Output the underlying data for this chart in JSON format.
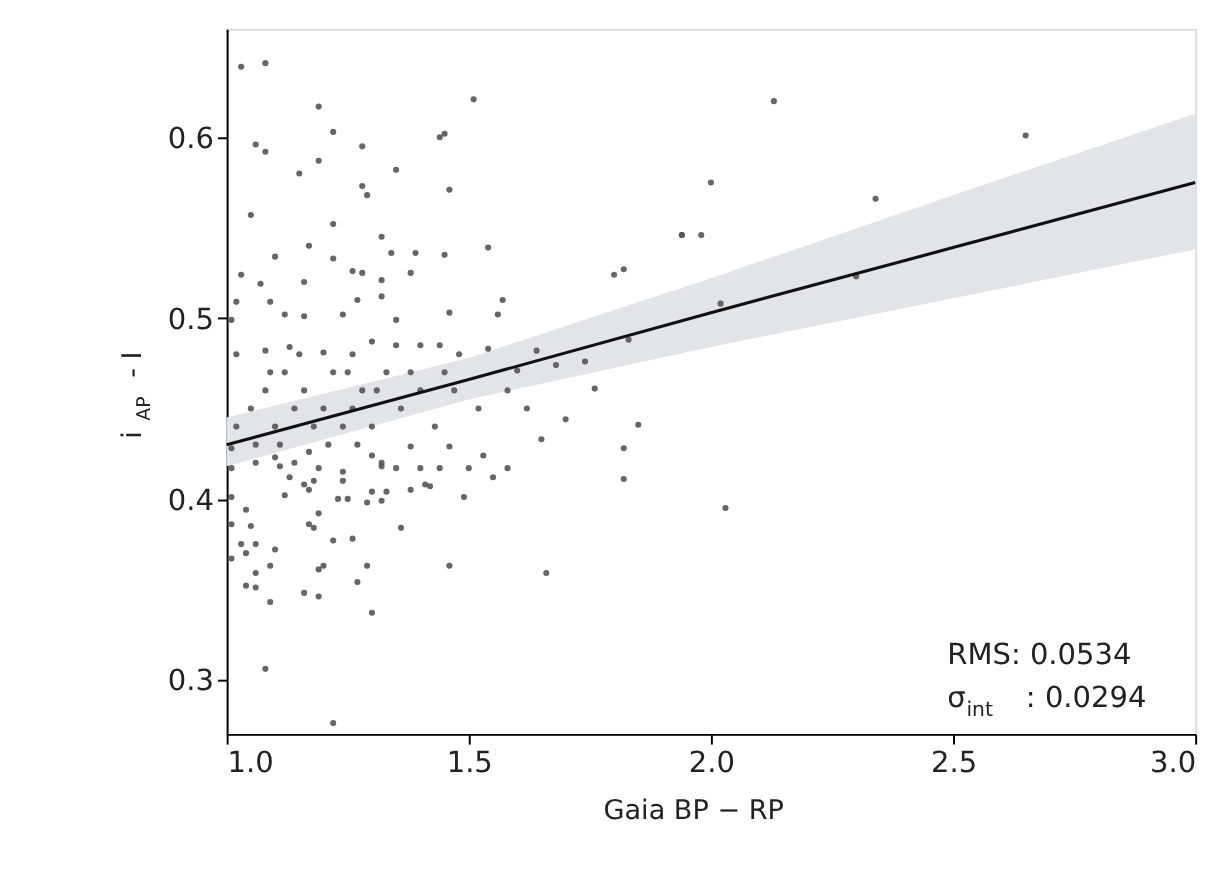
{
  "chart_data": {
    "type": "scatter",
    "xlabel": "Gaia BP − RP",
    "ylabel": "i$_{AP}$ - I",
    "xlim": [
      1.0,
      3.0
    ],
    "xticks": [
      {
        "value": 1,
        "label": "1.0"
      },
      1.5,
      {
        "value": 2,
        "label": "2.0"
      },
      2.5,
      {
        "value": 3,
        "label": "3.0"
      }
    ],
    "ylim": [
      0.27,
      0.66
    ],
    "yticks": [
      0.3,
      0.4,
      0.5,
      0.6
    ],
    "grid": false,
    "legend": false,
    "annotations": [
      "RMS: 0.0534",
      "σ$_{int}$ : 0.0294"
    ],
    "series": [
      {
        "marker": "circle",
        "color": "#555555",
        "x": [
          1.03,
          1.08,
          1.19,
          1.51,
          1.06,
          1.08,
          1.22,
          1.28,
          1.44,
          1.45,
          1.15,
          1.19,
          1.35,
          1.46,
          1.28,
          1.29,
          1.05,
          1.22,
          1.32,
          1.54,
          1.17,
          1.1,
          1.22,
          1.34,
          1.39,
          1.45,
          1.94,
          1.8,
          1.82,
          1.03,
          1.07,
          1.16,
          1.28,
          1.38,
          1.32,
          1.26,
          1.02,
          1.01,
          1.09,
          1.12,
          1.16,
          1.24,
          1.27,
          1.32,
          1.35,
          1.46,
          1.57,
          1.56,
          1.02,
          1.08,
          1.13,
          1.2,
          1.26,
          1.3,
          1.35,
          1.4,
          1.44,
          1.48,
          1.54,
          1.64,
          1.76,
          1.74,
          1.68,
          1.6,
          1.01,
          1.06,
          1.1,
          1.01,
          1.01,
          1.04,
          1.01,
          1.05,
          1.06,
          1.1,
          1.03,
          1.01,
          1.04,
          1.06,
          1.04,
          1.06,
          1.09,
          1.16,
          1.19,
          1.08,
          1.22,
          1.3,
          1.27,
          1.19,
          1.2,
          1.29,
          1.09,
          1.46,
          1.66,
          1.17,
          1.18,
          1.22,
          1.26,
          1.36,
          1.19,
          1.23,
          1.25,
          1.29,
          1.32,
          1.49,
          1.38,
          1.41,
          1.42,
          1.33,
          1.3,
          1.16,
          1.13,
          1.18,
          1.24,
          1.12,
          1.17,
          1.32,
          1.32,
          1.35,
          1.4,
          1.44,
          1.5,
          1.58,
          1.55,
          1.82,
          1.82,
          1.85,
          1.65,
          1.7,
          1.53,
          1.46,
          1.38,
          1.3,
          1.17,
          1.14,
          1.19,
          1.24,
          1.11,
          1.02,
          1.05,
          1.08,
          1.1,
          1.12,
          1.14,
          1.16,
          1.18,
          1.2,
          1.22,
          1.24,
          1.26,
          1.28,
          1.3,
          1.33,
          1.36,
          1.4,
          1.43,
          1.47,
          1.52,
          1.58,
          1.62,
          1.06,
          1.11,
          1.21,
          1.27,
          1.09,
          1.15,
          1.25,
          1.31,
          1.38,
          1.45,
          2.13,
          2.65,
          2.0,
          2.34,
          1.94,
          1.98,
          2.02,
          2.3,
          1.83,
          2.03
        ],
        "values": [
          0.639,
          0.641,
          0.617,
          0.621,
          0.596,
          0.592,
          0.603,
          0.595,
          0.6,
          0.602,
          0.58,
          0.587,
          0.582,
          0.571,
          0.573,
          0.568,
          0.557,
          0.552,
          0.545,
          0.539,
          0.54,
          0.534,
          0.533,
          0.536,
          0.536,
          0.535,
          0.546,
          0.524,
          0.527,
          0.524,
          0.519,
          0.52,
          0.525,
          0.525,
          0.521,
          0.526,
          0.509,
          0.499,
          0.509,
          0.502,
          0.501,
          0.502,
          0.51,
          0.512,
          0.499,
          0.503,
          0.51,
          0.502,
          0.48,
          0.482,
          0.484,
          0.481,
          0.48,
          0.487,
          0.485,
          0.485,
          0.485,
          0.48,
          0.483,
          0.482,
          0.461,
          0.476,
          0.474,
          0.471,
          0.428,
          0.42,
          0.423,
          0.417,
          0.401,
          0.394,
          0.386,
          0.385,
          0.375,
          0.372,
          0.375,
          0.367,
          0.37,
          0.359,
          0.352,
          0.351,
          0.343,
          0.348,
          0.346,
          0.306,
          0.276,
          0.337,
          0.354,
          0.361,
          0.363,
          0.363,
          0.363,
          0.363,
          0.359,
          0.386,
          0.384,
          0.377,
          0.378,
          0.384,
          0.392,
          0.4,
          0.4,
          0.398,
          0.399,
          0.401,
          0.405,
          0.408,
          0.407,
          0.404,
          0.404,
          0.408,
          0.412,
          0.41,
          0.41,
          0.402,
          0.405,
          0.418,
          0.42,
          0.417,
          0.417,
          0.417,
          0.417,
          0.417,
          0.412,
          0.428,
          0.411,
          0.441,
          0.433,
          0.444,
          0.424,
          0.429,
          0.429,
          0.424,
          0.426,
          0.42,
          0.417,
          0.415,
          0.418,
          0.44,
          0.45,
          0.46,
          0.44,
          0.47,
          0.45,
          0.46,
          0.44,
          0.45,
          0.47,
          0.44,
          0.45,
          0.46,
          0.44,
          0.47,
          0.45,
          0.46,
          0.44,
          0.46,
          0.45,
          0.46,
          0.45,
          0.43,
          0.43,
          0.43,
          0.43,
          0.47,
          0.48,
          0.47,
          0.46,
          0.47,
          0.47,
          0.62,
          0.601,
          0.575,
          0.566,
          0.546,
          0.546,
          0.508,
          0.523,
          0.488,
          0.395
        ]
      },
      {
        "type": "line",
        "color": "#111111",
        "x": [
          1.0,
          1.5,
          2.0,
          2.5,
          3.0
        ],
        "values": [
          0.43,
          0.466,
          0.503,
          0.539,
          0.575
        ],
        "lower": [
          0.418,
          0.455,
          0.484,
          0.511,
          0.538
        ],
        "upper": [
          0.445,
          0.478,
          0.522,
          0.568,
          0.613
        ]
      }
    ]
  }
}
